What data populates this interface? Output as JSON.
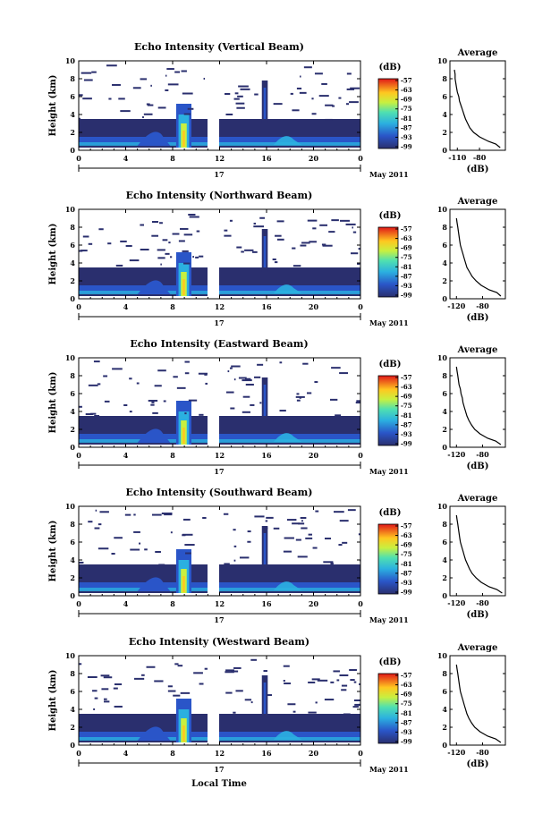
{
  "figure": {
    "xlabel": "Local Time",
    "date_label": "May 2011",
    "day_label": "17"
  },
  "chart_data": [
    {
      "type": "heatmap",
      "title": "Echo Intensity (Vertical Beam)",
      "ylabel": "Height (km)",
      "xlim": [
        0,
        24
      ],
      "ylim": [
        0,
        10
      ],
      "x_ticks": [
        "0",
        "4",
        "8",
        "12",
        "16",
        "20",
        "0"
      ],
      "y_ticks": [
        "0",
        "2",
        "4",
        "6",
        "8",
        "10"
      ],
      "colorbar": {
        "unit": "(dB)",
        "ticks": [
          "-57",
          "-63",
          "-69",
          "-75",
          "-81",
          "-87",
          "-93",
          "-99"
        ]
      },
      "average": {
        "title": "Average",
        "xlabel": "(dB)",
        "xlim": [
          -120,
          -45
        ],
        "x_ticks": [
          "-110",
          "-80"
        ],
        "x_tick_values": [
          -110,
          -80
        ],
        "y_ticks": [
          "0",
          "2",
          "4",
          "6",
          "8",
          "10"
        ],
        "heights": [
          0.3,
          0.7,
          1.0,
          1.5,
          2.0,
          2.5,
          3.0,
          3.5,
          4.0,
          4.5,
          5.0,
          5.5,
          6.0,
          6.5,
          7.0,
          7.5,
          8.0,
          8.5,
          9.0
        ],
        "values": [
          -52,
          -58,
          -68,
          -80,
          -88,
          -93,
          -96,
          -99,
          -101,
          -103,
          -105,
          -107,
          -108,
          -110,
          -111,
          -112,
          -113,
          -113,
          -114
        ]
      }
    },
    {
      "type": "heatmap",
      "title": "Echo Intensity (Northward Beam)",
      "ylabel": "Height (km)",
      "xlim": [
        0,
        24
      ],
      "ylim": [
        0,
        10
      ],
      "x_ticks": [
        "0",
        "4",
        "8",
        "12",
        "16",
        "20",
        "0"
      ],
      "y_ticks": [
        "0",
        "2",
        "4",
        "6",
        "8",
        "10"
      ],
      "colorbar": {
        "unit": "(dB)",
        "ticks": [
          "-57",
          "-63",
          "-69",
          "-75",
          "-81",
          "-87",
          "-93",
          "-99"
        ]
      },
      "average": {
        "title": "Average",
        "xlabel": "(dB)",
        "xlim": [
          -130,
          -45
        ],
        "x_ticks": [
          "-120",
          "-80"
        ],
        "x_tick_values": [
          -120,
          -80
        ],
        "y_ticks": [
          "0",
          "2",
          "4",
          "6",
          "8",
          "10"
        ],
        "heights": [
          0.3,
          0.7,
          1.0,
          1.5,
          2.0,
          2.5,
          3.0,
          3.5,
          4.0,
          4.5,
          5.0,
          5.5,
          6.0,
          6.5,
          7.0,
          7.5,
          8.0,
          8.5,
          9.0
        ],
        "values": [
          -52,
          -58,
          -70,
          -82,
          -90,
          -96,
          -100,
          -104,
          -106,
          -108,
          -110,
          -112,
          -114,
          -115,
          -116,
          -117,
          -118,
          -119,
          -120
        ]
      }
    },
    {
      "type": "heatmap",
      "title": "Echo Intensity (Eastward Beam)",
      "ylabel": "Height (km)",
      "xlim": [
        0,
        24
      ],
      "ylim": [
        0,
        10
      ],
      "x_ticks": [
        "0",
        "4",
        "8",
        "12",
        "16",
        "20",
        "0"
      ],
      "y_ticks": [
        "0",
        "2",
        "4",
        "6",
        "8",
        "10"
      ],
      "colorbar": {
        "unit": "(dB)",
        "ticks": [
          "-57",
          "-63",
          "-69",
          "-75",
          "-81",
          "-87",
          "-93",
          "-99"
        ]
      },
      "average": {
        "title": "Average",
        "xlabel": "(dB)",
        "xlim": [
          -130,
          -45
        ],
        "x_ticks": [
          "-120",
          "-80"
        ],
        "x_tick_values": [
          -120,
          -80
        ],
        "y_ticks": [
          "0",
          "2",
          "4",
          "6",
          "8",
          "10"
        ],
        "heights": [
          0.3,
          0.7,
          1.0,
          1.5,
          2.0,
          2.5,
          3.0,
          3.5,
          4.0,
          4.5,
          5.0,
          5.5,
          6.0,
          6.5,
          7.0,
          7.5,
          8.0,
          8.5,
          9.0
        ],
        "values": [
          -52,
          -60,
          -72,
          -84,
          -92,
          -97,
          -101,
          -104,
          -106,
          -108,
          -110,
          -111,
          -113,
          -114,
          -116,
          -117,
          -118,
          -119,
          -120
        ]
      }
    },
    {
      "type": "heatmap",
      "title": "Echo Intensity (Southward Beam)",
      "ylabel": "Height (km)",
      "xlim": [
        0,
        24
      ],
      "ylim": [
        0,
        10
      ],
      "x_ticks": [
        "0",
        "4",
        "8",
        "12",
        "16",
        "20",
        "0"
      ],
      "y_ticks": [
        "0",
        "2",
        "4",
        "6",
        "8",
        "10"
      ],
      "colorbar": {
        "unit": "(dB)",
        "ticks": [
          "-57",
          "-63",
          "-69",
          "-75",
          "-81",
          "-87",
          "-93",
          "-99"
        ]
      },
      "average": {
        "title": "Average",
        "xlabel": "(dB)",
        "xlim": [
          -130,
          -45
        ],
        "x_ticks": [
          "-120",
          "-80"
        ],
        "x_tick_values": [
          -120,
          -80
        ],
        "y_ticks": [
          "0",
          "2",
          "4",
          "6",
          "8",
          "10"
        ],
        "heights": [
          0.3,
          0.7,
          1.0,
          1.5,
          2.0,
          2.5,
          3.0,
          3.5,
          4.0,
          4.5,
          5.0,
          5.5,
          6.0,
          6.5,
          7.0,
          7.5,
          8.0,
          8.5,
          9.0
        ],
        "values": [
          -50,
          -58,
          -70,
          -82,
          -90,
          -96,
          -100,
          -103,
          -106,
          -108,
          -110,
          -112,
          -114,
          -115,
          -116,
          -117,
          -118,
          -119,
          -120
        ]
      }
    },
    {
      "type": "heatmap",
      "title": "Echo Intensity (Westward Beam)",
      "ylabel": "Height (km)",
      "xlim": [
        0,
        24
      ],
      "ylim": [
        0,
        10
      ],
      "x_ticks": [
        "0",
        "4",
        "8",
        "12",
        "16",
        "20",
        "0"
      ],
      "y_ticks": [
        "0",
        "2",
        "4",
        "6",
        "8",
        "10"
      ],
      "colorbar": {
        "unit": "(dB)",
        "ticks": [
          "-57",
          "-63",
          "-69",
          "-75",
          "-81",
          "-87",
          "-93",
          "-99"
        ]
      },
      "average": {
        "title": "Average",
        "xlabel": "(dB)",
        "xlim": [
          -130,
          -45
        ],
        "x_ticks": [
          "-120",
          "-80"
        ],
        "x_tick_values": [
          -120,
          -80
        ],
        "y_ticks": [
          "0",
          "2",
          "4",
          "6",
          "8",
          "10"
        ],
        "heights": [
          0.3,
          0.7,
          1.0,
          1.5,
          2.0,
          2.5,
          3.0,
          3.5,
          4.0,
          4.5,
          5.0,
          5.5,
          6.0,
          6.5,
          7.0,
          7.5,
          8.0,
          8.5,
          9.0
        ],
        "values": [
          -52,
          -60,
          -72,
          -84,
          -92,
          -97,
          -101,
          -104,
          -106,
          -108,
          -110,
          -112,
          -114,
          -115,
          -116,
          -117,
          -118,
          -119,
          -120
        ]
      }
    }
  ]
}
